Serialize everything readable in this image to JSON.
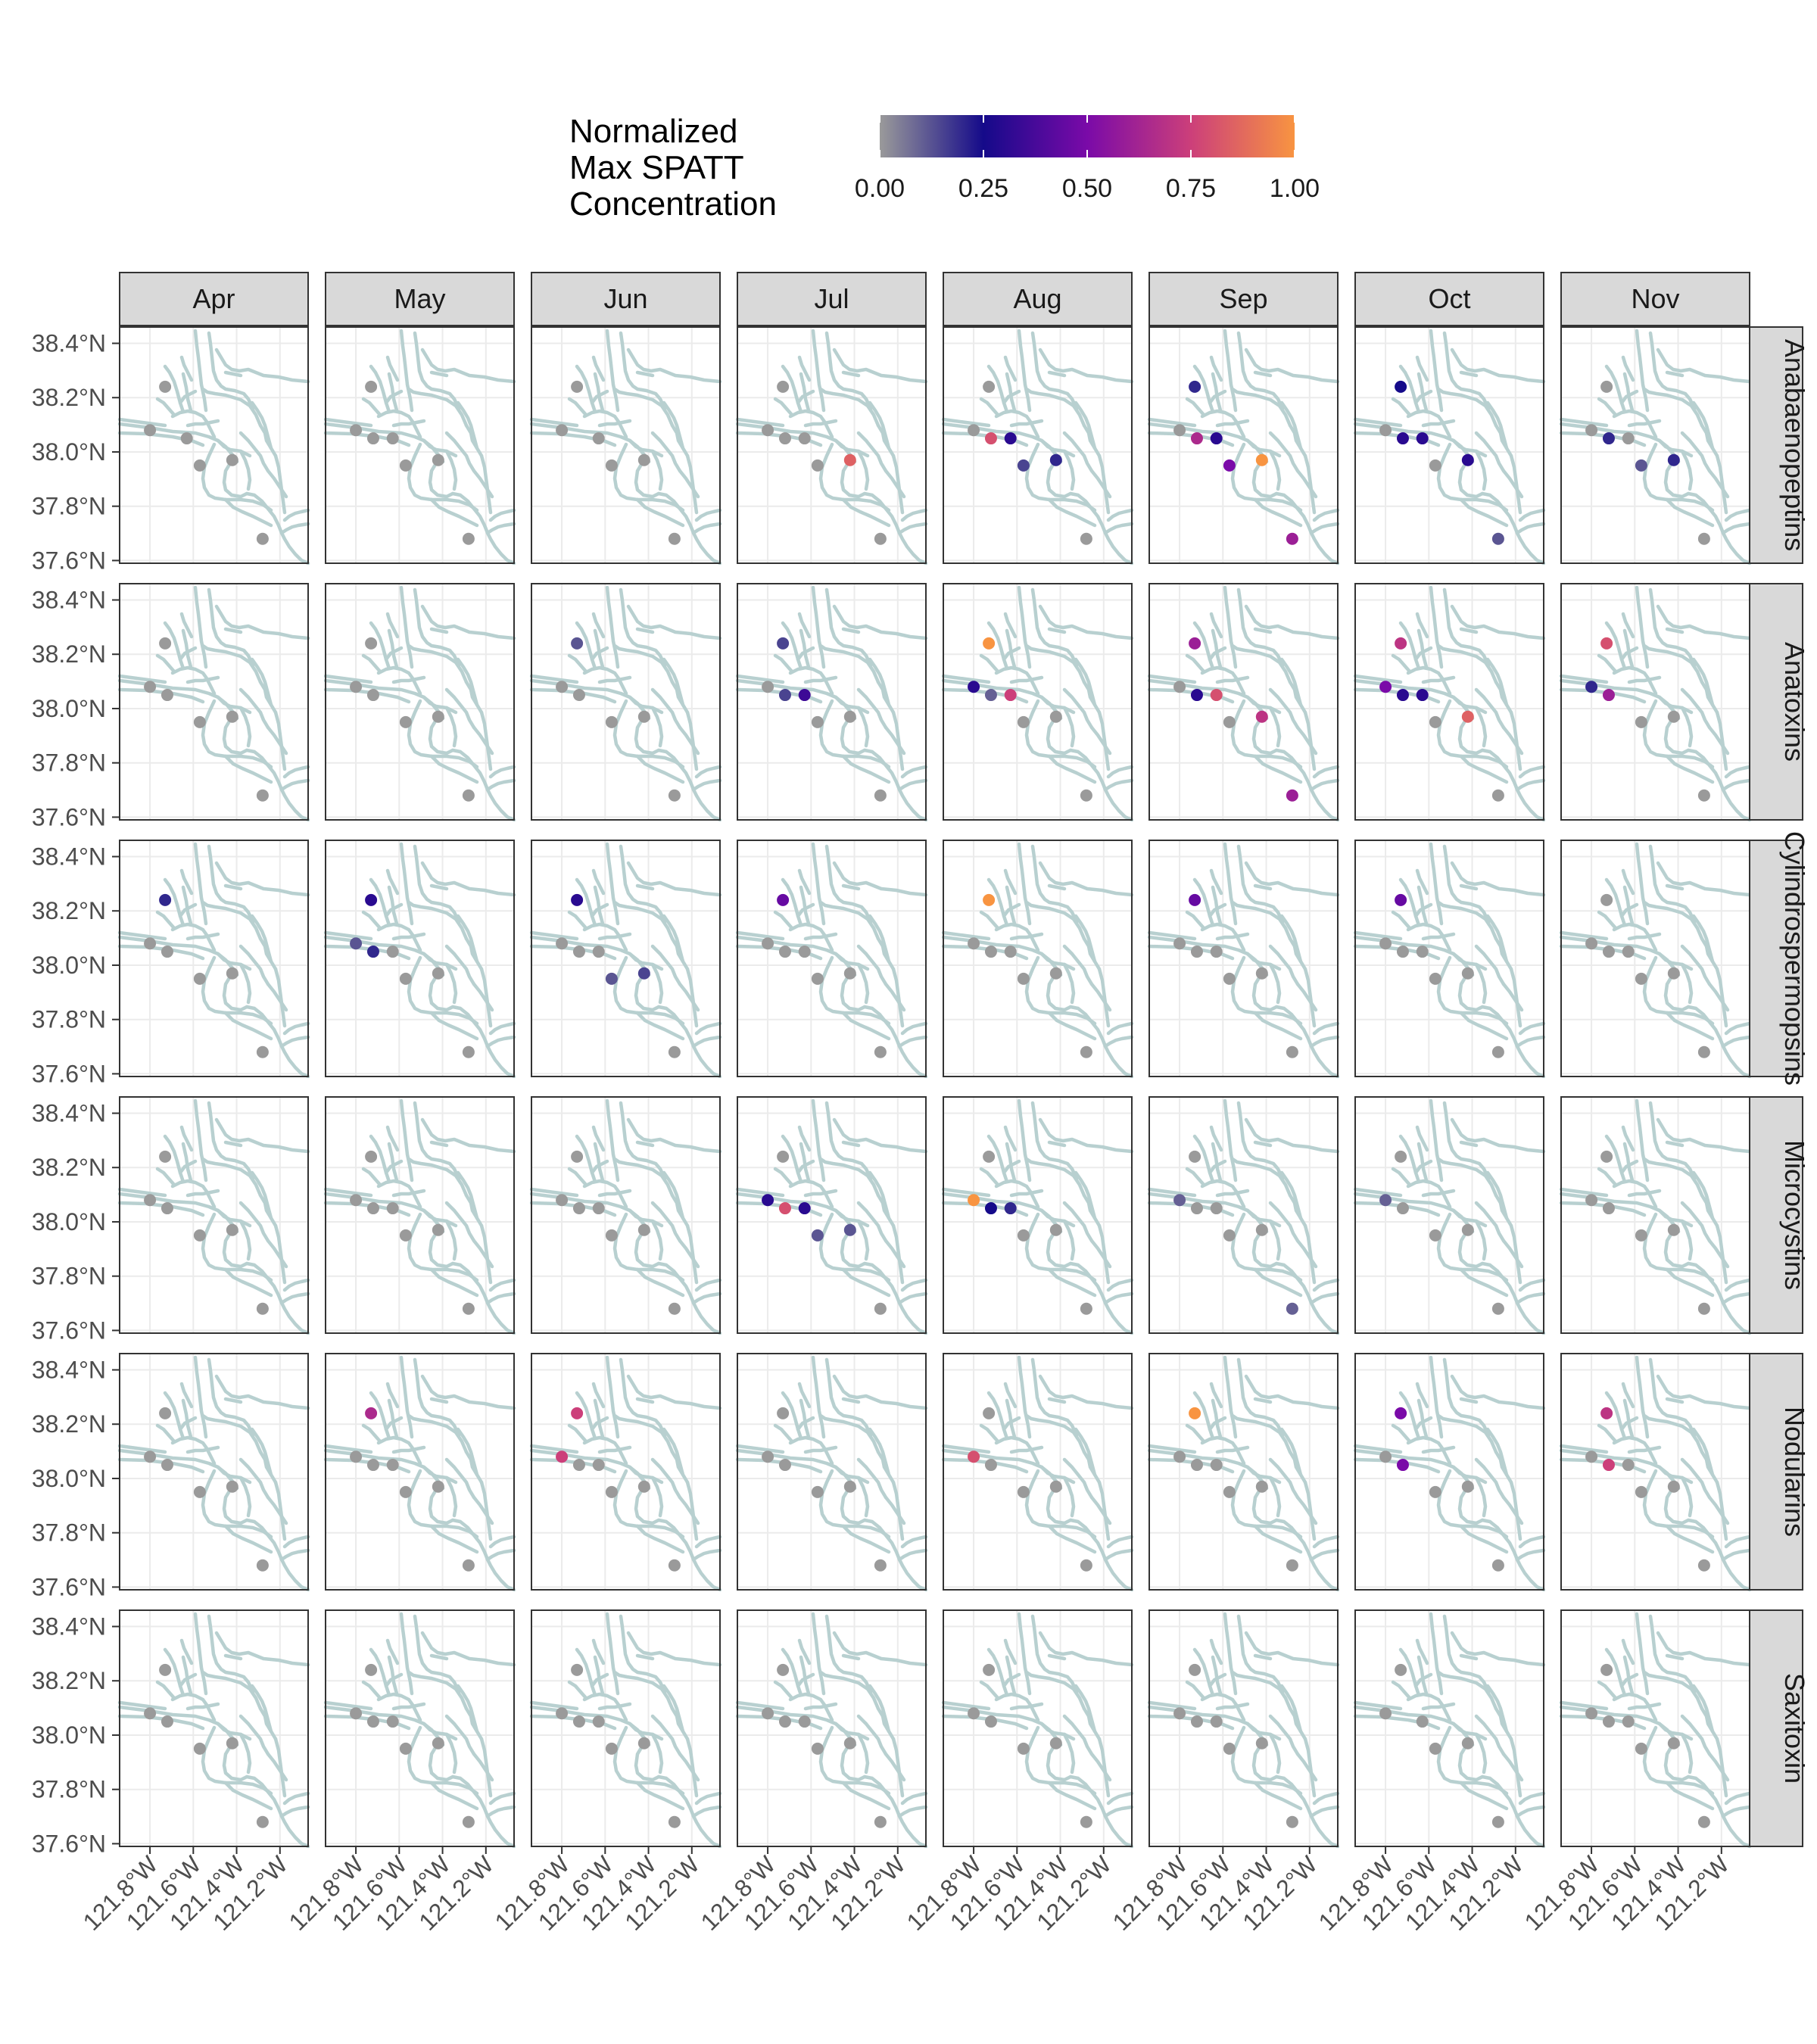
{
  "chart_data": {
    "type": "scatter",
    "layout": "faceted map grid (rows = toxin class, columns = month)",
    "legend": {
      "title_lines": [
        "Normalized",
        "Max SPATT",
        "Concentration"
      ],
      "ticks": [
        "0.00",
        "0.25",
        "0.50",
        "0.75",
        "1.00"
      ],
      "tick_values": [
        0,
        0.25,
        0.5,
        0.75,
        1.0
      ],
      "placement": "top",
      "colors": [
        "#9a9a9a",
        "#150a8a",
        "#7a0aa8",
        "#cc3f7a",
        "#f89441"
      ]
    },
    "months": [
      "Apr",
      "May",
      "Jun",
      "Jul",
      "Aug",
      "Sep",
      "Oct",
      "Nov"
    ],
    "toxins": [
      "Anabaenopeptins",
      "Anatoxins",
      "Cylindrospermopsins",
      "Microcystins",
      "Nodularins",
      "Saxitoxin"
    ],
    "x_axis": {
      "ticks": [
        -121.8,
        -121.6,
        -121.4,
        -121.2
      ],
      "tick_labels": [
        "121.8°W",
        "121.6°W",
        "121.4°W",
        "121.2°W"
      ],
      "range": [
        -121.94,
        -121.07
      ]
    },
    "y_axis": {
      "ticks": [
        37.6,
        37.8,
        38.0,
        38.2,
        38.4
      ],
      "tick_labels": [
        "37.6°N",
        "37.8°N",
        "38.0°N",
        "38.2°N",
        "38.4°N"
      ],
      "range": [
        37.59,
        38.46
      ]
    },
    "grid": true,
    "map_color": "#b8d0d0",
    "stations": [
      {
        "id": "S1",
        "lon": -121.73,
        "lat": 38.24
      },
      {
        "id": "S2",
        "lon": -121.8,
        "lat": 38.08
      },
      {
        "id": "S3",
        "lon": -121.72,
        "lat": 38.05
      },
      {
        "id": "S4",
        "lon": -121.63,
        "lat": 38.05
      },
      {
        "id": "S5",
        "lon": -121.57,
        "lat": 37.95
      },
      {
        "id": "S6",
        "lon": -121.42,
        "lat": 37.97
      },
      {
        "id": "S7",
        "lon": -121.28,
        "lat": 37.68
      }
    ],
    "values": {
      "Anabaenopeptins": [
        [
          0,
          0,
          null,
          0,
          0,
          0,
          0
        ],
        [
          0,
          0,
          0,
          0,
          0,
          0,
          0
        ],
        [
          0,
          0,
          null,
          0,
          0,
          0,
          0
        ],
        [
          0,
          0,
          0,
          0,
          0,
          0.85,
          0
        ],
        [
          0,
          0,
          0.8,
          0.3,
          0.15,
          0.2,
          0
        ],
        [
          0.2,
          0,
          0.65,
          0.3,
          0.5,
          1.0,
          0.6
        ],
        [
          0.25,
          0,
          0.3,
          0.3,
          0,
          0.3,
          0.12
        ],
        [
          0,
          0,
          0.2,
          0,
          0.12,
          0.2,
          0
        ]
      ],
      "Anatoxins": [
        [
          0,
          0,
          0,
          null,
          0,
          0,
          0
        ],
        [
          0,
          0,
          0,
          null,
          0,
          0,
          0
        ],
        [
          0.12,
          0,
          0,
          null,
          0,
          0,
          0
        ],
        [
          0.15,
          0,
          0.15,
          0.35,
          0,
          0,
          0
        ],
        [
          1.0,
          0.3,
          0.1,
          0.75,
          0,
          0,
          0
        ],
        [
          0.6,
          0,
          0.3,
          0.8,
          0,
          0.7,
          0.6
        ],
        [
          0.7,
          0.5,
          0.3,
          0.3,
          0,
          0.85,
          0
        ],
        [
          0.8,
          0.2,
          0.6,
          null,
          0,
          0,
          0
        ]
      ],
      "Cylindrospermopsins": [
        [
          0.2,
          0,
          0,
          null,
          0,
          0,
          0
        ],
        [
          0.3,
          0.12,
          0.2,
          0,
          0,
          0,
          0
        ],
        [
          0.3,
          0,
          0,
          0,
          0.12,
          0.15,
          0
        ],
        [
          0.45,
          0,
          0,
          0,
          0,
          0,
          0
        ],
        [
          1.0,
          0,
          0,
          0,
          0,
          0,
          0
        ],
        [
          0.45,
          0,
          0,
          0,
          0,
          0,
          0
        ],
        [
          0.45,
          0,
          0,
          0,
          0,
          0,
          0
        ],
        [
          0,
          0,
          0,
          0,
          0,
          0,
          0
        ]
      ],
      "Microcystins": [
        [
          0,
          0,
          0,
          null,
          0,
          0,
          0
        ],
        [
          0,
          0,
          0,
          0,
          0,
          0,
          0
        ],
        [
          0,
          0,
          0,
          0,
          0,
          0,
          0
        ],
        [
          0,
          0.3,
          0.8,
          0.3,
          0.12,
          0.12,
          0
        ],
        [
          0,
          1.0,
          0.25,
          0.2,
          0,
          0,
          0
        ],
        [
          0,
          0.1,
          0,
          0,
          0,
          0,
          0.1
        ],
        [
          0,
          0.1,
          0,
          null,
          0,
          0,
          0
        ],
        [
          0,
          0,
          0,
          null,
          0,
          0,
          0
        ]
      ],
      "Nodularins": [
        [
          0,
          0,
          0,
          null,
          0,
          0,
          0
        ],
        [
          0.65,
          0,
          0,
          0,
          0,
          0,
          0
        ],
        [
          0.75,
          0.75,
          0,
          0,
          0,
          0,
          0
        ],
        [
          0,
          0,
          0,
          null,
          0,
          0,
          0
        ],
        [
          0,
          0.8,
          0,
          null,
          0,
          0,
          0
        ],
        [
          1.0,
          0,
          0,
          0,
          0,
          0,
          0
        ],
        [
          0.5,
          0,
          0.5,
          null,
          0,
          0,
          0
        ],
        [
          0.7,
          0,
          0.75,
          0,
          0,
          0,
          0
        ]
      ],
      "Saxitoxin": [
        [
          0,
          0,
          0,
          null,
          0,
          0,
          0
        ],
        [
          0,
          0,
          0,
          0,
          0,
          0,
          0
        ],
        [
          0,
          0,
          0,
          0,
          0,
          0,
          0
        ],
        [
          0,
          0,
          0,
          0,
          0,
          0,
          0
        ],
        [
          0,
          0,
          0,
          null,
          0,
          0,
          0
        ],
        [
          0,
          0,
          0,
          0,
          0,
          0,
          0
        ],
        [
          0,
          0,
          null,
          0,
          0,
          0,
          0
        ],
        [
          0,
          0,
          0,
          0,
          0,
          0,
          0
        ]
      ]
    }
  }
}
